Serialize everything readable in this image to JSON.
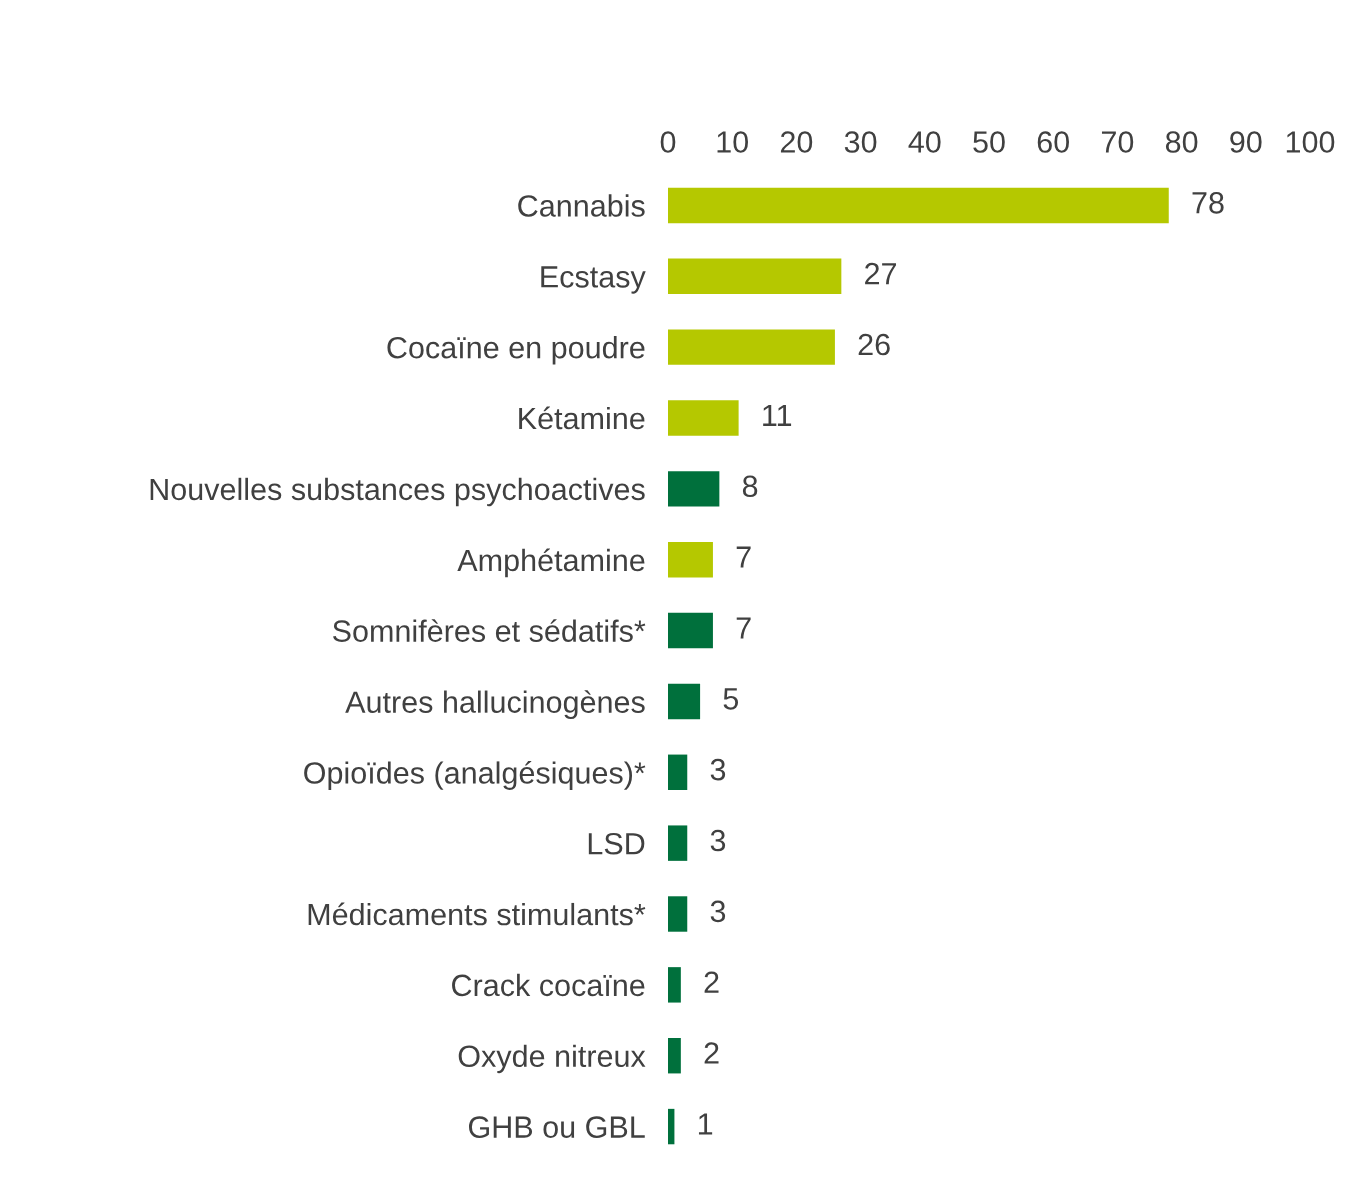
{
  "chart_data": {
    "type": "bar",
    "orientation": "horizontal",
    "categories": [
      "Cannabis",
      "Ecstasy",
      "Cocaïne en poudre",
      "Kétamine",
      "Nouvelles substances psychoactives",
      "Amphétamine",
      "Somnifères et sédatifs*",
      "Autres hallucinogènes",
      "Opioïdes (analgésiques)*",
      "LSD",
      "Médicaments stimulants*",
      "Crack cocaïne",
      "Oxyde nitreux",
      "GHB ou GBL"
    ],
    "values": [
      78,
      27,
      26,
      11,
      8,
      7,
      7,
      5,
      3,
      3,
      3,
      2,
      2,
      1
    ],
    "colors": [
      "#b5c800",
      "#b5c800",
      "#b5c800",
      "#b5c800",
      "#00703c",
      "#b5c800",
      "#00703c",
      "#00703c",
      "#00703c",
      "#00703c",
      "#00703c",
      "#00703c",
      "#00703c",
      "#00703c"
    ],
    "xlim": [
      0,
      100
    ],
    "xticks": [
      0,
      10,
      20,
      30,
      40,
      50,
      60,
      70,
      80,
      90,
      100
    ],
    "data_labels": true,
    "grid": false,
    "legend": false
  }
}
